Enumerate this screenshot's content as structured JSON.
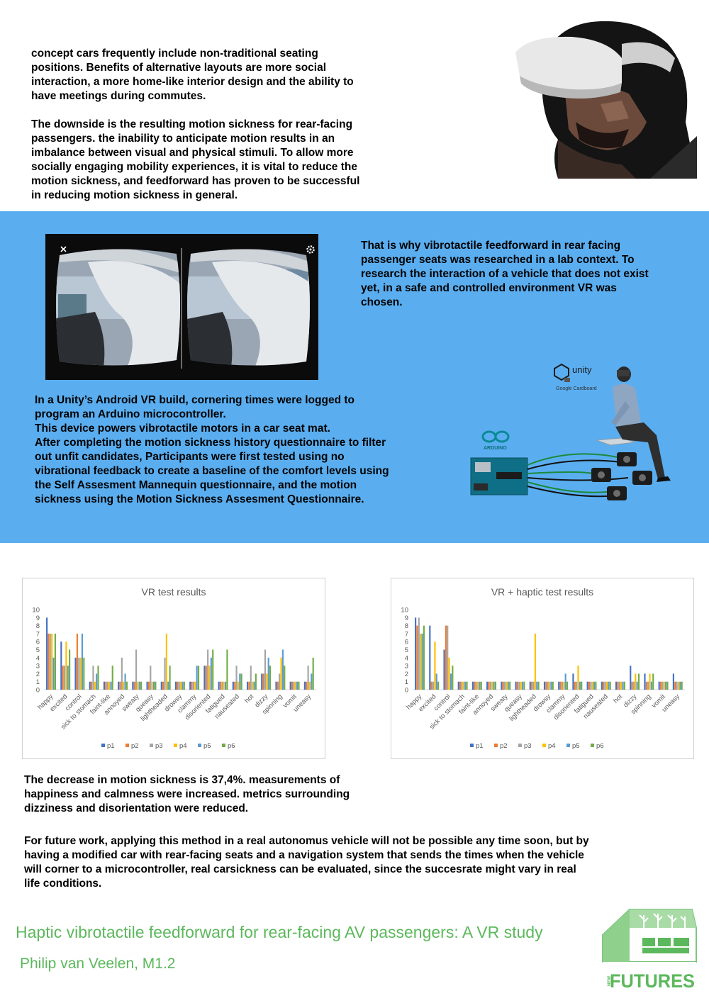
{
  "intro": {
    "paragraph_1": "concept cars frequently include non-traditional seating\npositions. Benefits of alternative layouts are more social\ninteraction, a more home-like interior design and the ability to\nhave meetings during commutes.",
    "paragraph_2": "The downside is the resulting motion sickness for rear-facing\npassengers. the inability to anticipate motion results in an\nimbalance between visual and physical stimuli. To allow more\nsocially engaging mobility experiences, it is vital to reduce the\nmotion sickness, and feedforward has proven to be successful\nin reducing motion sickness in general."
  },
  "method": {
    "vr_paragraph": "That is why vibrotactile feedforward in rear facing\npassenger seats was researched in a lab context. To\nresearch the interaction of a vehicle that does not exist\nyet, in a safe and controlled environment VR was\nchosen.",
    "build_paragraph": "In a Unity’s Android VR build, cornering times were logged to\nprogram an Arduino microcontroller.\nThis device powers vibrotactile motors in a car seat mat.\nAfter completing the motion sickness history questionnaire to filter\nout unfit candidates, Participants were first tested using no\nvibrational feedback to create a baseline of the comfort levels using\nthe Self Assesment Mannequin questionnaire, and the motion\nsickness using the Motion Sickness Assesment Questionnaire.",
    "unity_label": "unity",
    "cardboard_label": "Google Cardboard",
    "arduino_label": "ARDUINO"
  },
  "results": {
    "summary": "The decrease in motion sickness is 37,4%. measurements of\nhappiness and calmness were increased. metrics surrounding\ndizziness and disorientation were reduced.",
    "future_work": "For future work, applying this method in a real autonomus vehicle will not be possible any time soon, but by\nhaving a modified car with rear-facing seats and a navigation system that sends the times when the vehicle\nwill corner to a microcontroller, real carsickness can be evaluated, since the succesrate might vary in real\nlife conditions."
  },
  "footer": {
    "title": "Haptic vibrotactile feedforward for rear-facing AV passengers: A VR study",
    "author": "Philip van Veelen, M1.2",
    "logo_word": "FUTURES",
    "logo_small": "NEW",
    "logo_color": "#5cb85c"
  },
  "colors": {
    "band": "#5aaef0",
    "p1": "#4472c4",
    "p2": "#ed7d31",
    "p3": "#a5a5a5",
    "p4": "#ffc000",
    "p5": "#5b9bd5",
    "p6": "#70ad47"
  },
  "chart_data": [
    {
      "type": "bar",
      "title": "VR test results",
      "ylim": [
        0,
        10
      ],
      "yticks": [
        0,
        1,
        2,
        3,
        4,
        5,
        6,
        7,
        8,
        9,
        10
      ],
      "grid": false,
      "legend": "bottom",
      "categories": [
        "happy",
        "excited",
        "control",
        "sick to stomach",
        "faint-like",
        "annoyed",
        "sweaty",
        "queasy",
        "lightheaded",
        "drowsy",
        "clammy",
        "disoriented",
        "fatigued",
        "nauseated",
        "hot",
        "dizzy",
        "spinning",
        "vomit",
        "uneasy"
      ],
      "series": [
        {
          "name": "p1",
          "values": [
            9,
            6,
            4,
            1,
            1,
            1,
            1,
            1,
            1,
            1,
            1,
            3,
            1,
            1,
            1,
            2,
            1,
            1,
            1
          ]
        },
        {
          "name": "p2",
          "values": [
            7,
            3,
            7,
            1,
            1,
            1,
            1,
            1,
            1,
            1,
            1,
            3,
            1,
            1,
            1,
            2,
            1,
            1,
            1
          ]
        },
        {
          "name": "p3",
          "values": [
            7,
            3,
            4,
            3,
            1,
            4,
            5,
            3,
            4,
            1,
            1,
            5,
            1,
            3,
            3,
            5,
            2,
            1,
            3
          ]
        },
        {
          "name": "p4",
          "values": [
            7,
            6,
            4,
            1,
            1,
            1,
            1,
            1,
            7,
            1,
            1,
            3,
            1,
            1,
            1,
            2,
            4,
            1,
            1
          ]
        },
        {
          "name": "p5",
          "values": [
            4,
            3,
            7,
            2,
            1,
            2,
            1,
            1,
            1,
            1,
            3,
            4,
            1,
            2,
            1,
            4,
            5,
            1,
            2
          ]
        },
        {
          "name": "p6",
          "values": [
            7,
            5,
            4,
            3,
            3,
            1,
            1,
            1,
            3,
            1,
            3,
            5,
            5,
            2,
            2,
            3,
            3,
            1,
            4
          ]
        }
      ]
    },
    {
      "type": "bar",
      "title": "VR + haptic test results",
      "ylim": [
        0,
        10
      ],
      "yticks": [
        0,
        1,
        2,
        3,
        4,
        5,
        6,
        7,
        8,
        9,
        10
      ],
      "grid": false,
      "legend": "bottom",
      "categories": [
        "happy",
        "excited",
        "control",
        "sick to stomach",
        "faint-like",
        "annoyed",
        "sweaty",
        "queasy",
        "lightheaded",
        "drowsy",
        "clammy",
        "disoriented",
        "fatigued",
        "nauseated",
        "hot",
        "dizzy",
        "spinning",
        "vomit",
        "uneasy"
      ],
      "series": [
        {
          "name": "p1",
          "values": [
            9,
            8,
            5,
            1,
            1,
            1,
            1,
            1,
            1,
            1,
            1,
            2,
            1,
            1,
            1,
            3,
            2,
            1,
            2
          ]
        },
        {
          "name": "p2",
          "values": [
            8,
            1,
            8,
            1,
            1,
            1,
            1,
            1,
            1,
            1,
            1,
            1,
            1,
            1,
            1,
            1,
            1,
            1,
            1
          ]
        },
        {
          "name": "p3",
          "values": [
            9,
            1,
            8,
            1,
            1,
            1,
            1,
            1,
            1,
            1,
            1,
            1,
            1,
            1,
            1,
            1,
            1,
            1,
            1
          ]
        },
        {
          "name": "p4",
          "values": [
            7,
            6,
            4,
            1,
            1,
            1,
            1,
            1,
            7,
            1,
            1,
            3,
            1,
            1,
            1,
            2,
            2,
            1,
            1
          ]
        },
        {
          "name": "p5",
          "values": [
            7,
            2,
            2,
            1,
            1,
            1,
            1,
            1,
            1,
            1,
            2,
            1,
            1,
            1,
            1,
            1,
            1,
            1,
            1
          ]
        },
        {
          "name": "p6",
          "values": [
            8,
            1,
            3,
            1,
            1,
            1,
            1,
            1,
            1,
            1,
            1,
            1,
            1,
            1,
            1,
            2,
            2,
            1,
            1
          ]
        }
      ]
    }
  ]
}
